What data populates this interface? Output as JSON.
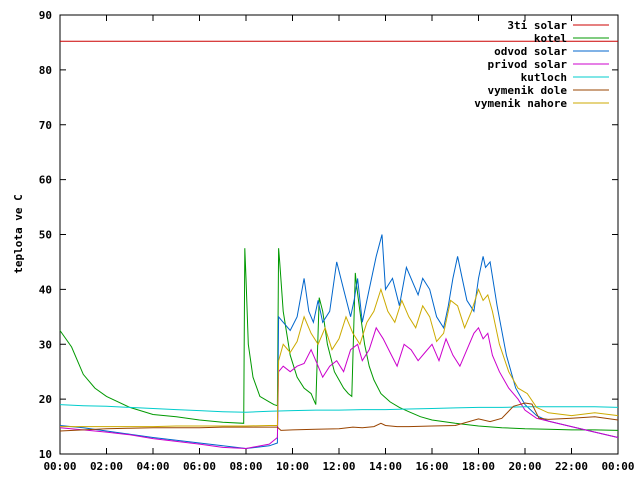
{
  "chart_data": {
    "type": "line",
    "title": "",
    "xlabel": "",
    "ylabel": "teplota ve C",
    "xlim": [
      0,
      24
    ],
    "ylim": [
      10,
      90
    ],
    "grid": false,
    "legend_position": "top-right",
    "x_ticks": [
      "00:00",
      "02:00",
      "04:00",
      "06:00",
      "08:00",
      "10:00",
      "12:00",
      "14:00",
      "16:00",
      "18:00",
      "20:00",
      "22:00",
      "00:00"
    ],
    "y_ticks": [
      10,
      20,
      30,
      40,
      50,
      60,
      70,
      80,
      90
    ],
    "series": [
      {
        "name": "3ti solar",
        "color": "#cc0000",
        "x": [
          0,
          24
        ],
        "y": [
          85.2,
          85.2
        ]
      },
      {
        "name": "kotel",
        "color": "#009900",
        "x": [
          0,
          0.5,
          1,
          1.5,
          2,
          3,
          4,
          5,
          6,
          7,
          7.9,
          7.95,
          8.0,
          8.1,
          8.3,
          8.6,
          9.0,
          9.2,
          9.35,
          9.4,
          9.45,
          9.6,
          9.9,
          10.2,
          10.5,
          10.8,
          10.9,
          11.0,
          11.15,
          11.3,
          11.5,
          11.8,
          12.2,
          12.4,
          12.55,
          12.7,
          12.75,
          12.9,
          13.1,
          13.3,
          13.5,
          13.8,
          14.2,
          14.6,
          15.0,
          15.5,
          16,
          17,
          18,
          19,
          20,
          21,
          22,
          23,
          24
        ],
        "y": [
          32.5,
          29.5,
          24.5,
          22,
          20.5,
          18.5,
          17.2,
          16.8,
          16.2,
          15.8,
          15.6,
          47.5,
          42,
          30,
          24,
          20.5,
          19.5,
          19,
          18.8,
          47.5,
          45,
          36,
          28,
          24,
          22,
          21,
          20,
          19,
          38.5,
          36,
          30,
          25,
          22,
          21,
          20.5,
          43,
          41,
          36,
          30,
          26,
          23.5,
          21,
          19.5,
          18.5,
          17.7,
          16.8,
          16.2,
          15.6,
          15.1,
          14.8,
          14.6,
          14.5,
          14.4,
          14.4,
          14.3
        ]
      },
      {
        "name": "odvod solar",
        "color": "#0066cc",
        "x": [
          0,
          1,
          2,
          3,
          4,
          5,
          6,
          7,
          8,
          9,
          9.35,
          9.4,
          9.6,
          9.9,
          10.2,
          10.5,
          10.7,
          10.9,
          11.1,
          11.3,
          11.6,
          11.9,
          12.2,
          12.5,
          12.65,
          12.8,
          13.0,
          13.3,
          13.6,
          13.85,
          14.0,
          14.3,
          14.6,
          14.9,
          15.2,
          15.4,
          15.6,
          15.9,
          16.2,
          16.5,
          16.7,
          16.9,
          17.1,
          17.3,
          17.5,
          17.8,
          18.0,
          18.2,
          18.3,
          18.5,
          18.8,
          19.2,
          19.6,
          20.0,
          20.5,
          21,
          22,
          23,
          24
        ],
        "y": [
          15.2,
          14.8,
          14.2,
          13.6,
          13.0,
          12.5,
          12.0,
          11.5,
          11.0,
          11.5,
          12.0,
          35,
          34,
          32.5,
          35,
          42,
          36,
          34,
          38,
          34,
          36,
          45,
          40,
          35,
          38,
          42,
          34,
          40,
          46,
          50,
          40,
          42,
          37,
          44,
          41,
          39,
          42,
          40,
          35,
          33,
          37,
          42,
          46,
          42,
          38,
          36,
          42,
          46,
          44,
          45,
          37,
          28,
          22,
          19,
          17,
          16,
          15,
          14,
          13
        ]
      },
      {
        "name": "privod solar",
        "color": "#cc00cc",
        "x": [
          0,
          1,
          2,
          3,
          4,
          5,
          6,
          7,
          8,
          9,
          9.35,
          9.4,
          9.6,
          9.9,
          10.2,
          10.5,
          10.8,
          11.0,
          11.3,
          11.6,
          11.9,
          12.2,
          12.5,
          12.8,
          13.0,
          13.3,
          13.6,
          13.9,
          14.2,
          14.5,
          14.8,
          15.1,
          15.4,
          15.7,
          16.0,
          16.3,
          16.6,
          16.9,
          17.2,
          17.5,
          17.8,
          18.0,
          18.2,
          18.4,
          18.6,
          18.9,
          19.3,
          19.7,
          20.0,
          20.5,
          21,
          22,
          23,
          24
        ],
        "y": [
          14.8,
          14.4,
          14.0,
          13.5,
          12.8,
          12.3,
          11.8,
          11.2,
          11.0,
          11.8,
          13.0,
          25,
          26,
          25,
          26,
          26.5,
          29,
          27,
          24,
          26,
          27,
          25,
          29,
          30,
          27,
          29,
          33,
          31,
          28.5,
          26,
          30,
          29,
          27,
          28.5,
          30,
          27,
          31,
          28,
          26,
          29,
          32,
          33,
          31,
          32,
          28,
          25,
          22,
          20,
          18,
          16.5,
          16,
          15,
          14,
          13
        ]
      },
      {
        "name": "kutloch",
        "color": "#00cccc",
        "x": [
          0,
          1,
          2,
          3,
          4,
          5,
          6,
          7,
          8,
          9,
          10,
          11,
          12,
          13,
          14,
          15,
          16,
          17,
          18,
          19,
          20,
          21,
          22,
          23,
          24
        ],
        "y": [
          19.0,
          18.8,
          18.7,
          18.5,
          18.3,
          18.1,
          17.9,
          17.7,
          17.6,
          17.8,
          17.9,
          18.0,
          18.0,
          18.1,
          18.1,
          18.2,
          18.3,
          18.4,
          18.5,
          18.5,
          18.6,
          18.6,
          18.6,
          18.6,
          18.5
        ]
      },
      {
        "name": "vymenik dole",
        "color": "#994400",
        "x": [
          0,
          1,
          2,
          3,
          4,
          5,
          6,
          7,
          8,
          9,
          9.35,
          9.5,
          10,
          11,
          12,
          12.6,
          13,
          13.5,
          13.8,
          14,
          14.5,
          15,
          16,
          17,
          18,
          18.5,
          19,
          19.5,
          20,
          20.3,
          20.6,
          21,
          22,
          23,
          24
        ],
        "y": [
          14.2,
          14.4,
          14.6,
          14.7,
          14.8,
          14.8,
          14.8,
          14.9,
          14.9,
          14.9,
          14.9,
          14.3,
          14.4,
          14.5,
          14.6,
          14.9,
          14.8,
          15.0,
          15.6,
          15.2,
          15.0,
          15.0,
          15.1,
          15.2,
          16.4,
          15.9,
          16.5,
          18.7,
          19.3,
          19.1,
          16.5,
          16.3,
          16.5,
          16.8,
          16.2
        ]
      },
      {
        "name": "vymenik nahore",
        "color": "#ccaa00",
        "x": [
          0,
          1,
          2,
          3,
          4,
          5,
          6,
          7,
          8,
          9,
          9.35,
          9.4,
          9.6,
          9.9,
          10.2,
          10.5,
          10.8,
          11.1,
          11.4,
          11.7,
          12.0,
          12.3,
          12.6,
          12.9,
          13.2,
          13.5,
          13.8,
          14.1,
          14.4,
          14.7,
          15.0,
          15.3,
          15.6,
          15.9,
          16.2,
          16.5,
          16.8,
          17.1,
          17.4,
          17.7,
          18.0,
          18.2,
          18.4,
          18.6,
          18.9,
          19.3,
          19.7,
          20.1,
          20.5,
          21,
          22,
          23,
          24
        ],
        "y": [
          15.0,
          15.0,
          15.0,
          15.0,
          15.0,
          15.1,
          15.1,
          15.1,
          15.1,
          15.2,
          15.2,
          27,
          30,
          28.5,
          30.5,
          35,
          32,
          30,
          33,
          29,
          31,
          35,
          32,
          30,
          34,
          36,
          40,
          36,
          34,
          38,
          35,
          33,
          37,
          35,
          30.5,
          32,
          38,
          37,
          33,
          36,
          40,
          38,
          39,
          36,
          30,
          25,
          22,
          21,
          18.5,
          17.5,
          17.0,
          17.5,
          17.0
        ]
      }
    ]
  }
}
